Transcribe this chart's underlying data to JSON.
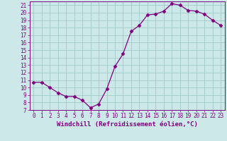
{
  "x": [
    0,
    1,
    2,
    3,
    4,
    5,
    6,
    7,
    8,
    9,
    10,
    11,
    12,
    13,
    14,
    15,
    16,
    17,
    18,
    19,
    20,
    21,
    22,
    23
  ],
  "y": [
    10.7,
    10.7,
    10.0,
    9.3,
    8.8,
    8.8,
    8.3,
    7.3,
    7.8,
    9.8,
    12.8,
    14.5,
    17.5,
    18.3,
    19.7,
    19.8,
    20.2,
    21.2,
    21.0,
    20.3,
    20.2,
    19.8,
    19.0,
    18.3
  ],
  "line_color": "#800080",
  "marker": "D",
  "marker_size": 2.5,
  "bg_color": "#cce8e8",
  "grid_color": "#a0c8c8",
  "xlabel": "Windchill (Refroidissement éolien,°C)",
  "xlim": [
    -0.5,
    23.5
  ],
  "ylim": [
    7,
    21.5
  ],
  "yticks": [
    7,
    8,
    9,
    10,
    11,
    12,
    13,
    14,
    15,
    16,
    17,
    18,
    19,
    20,
    21
  ],
  "xticks": [
    0,
    1,
    2,
    3,
    4,
    5,
    6,
    7,
    8,
    9,
    10,
    11,
    12,
    13,
    14,
    15,
    16,
    17,
    18,
    19,
    20,
    21,
    22,
    23
  ],
  "tick_color": "#800080",
  "label_color": "#800080",
  "axis_color": "#800080",
  "xlabel_fontsize": 6.5,
  "tick_fontsize": 5.5
}
